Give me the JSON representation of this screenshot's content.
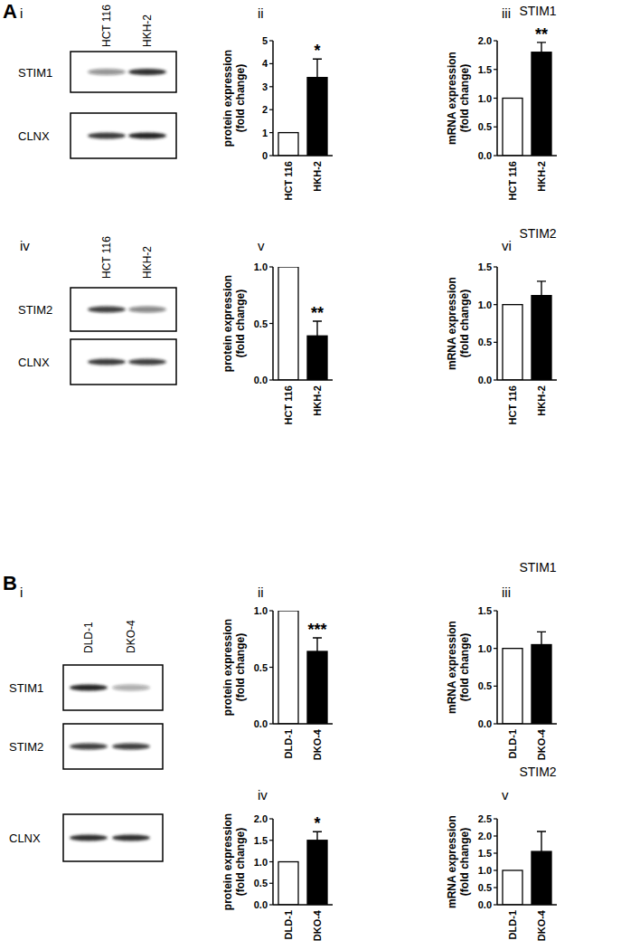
{
  "chart_data": [
    {
      "type": "bar",
      "title": "ii",
      "categories": [
        "HCT 116",
        "HKH-2"
      ],
      "values": [
        1,
        3.4
      ],
      "errors": [
        null,
        0.8
      ],
      "colors": [
        "#ffffff",
        "#000000"
      ],
      "y_label": [
        "protein expression",
        "(fold change)"
      ],
      "ylim": [
        0,
        5
      ],
      "yticks": [
        0,
        1,
        2,
        3,
        4,
        5
      ],
      "annotation": "*"
    },
    {
      "type": "bar",
      "title": "iii",
      "categories": [
        "HCT 116",
        "HKH-2"
      ],
      "values": [
        1,
        1.8
      ],
      "errors": [
        null,
        0.17
      ],
      "colors": [
        "#ffffff",
        "#000000"
      ],
      "y_label": [
        "mRNA expression",
        "(fold change)"
      ],
      "ylim": [
        0,
        2
      ],
      "yticks": [
        {
          "value": 0,
          "label": "0.0"
        },
        {
          "value": 0.5,
          "label": "0.5"
        },
        {
          "value": 1,
          "label": "1.0"
        },
        {
          "value": 1.5,
          "label": "1.5"
        },
        {
          "value": 2,
          "label": "2.0"
        }
      ],
      "annotation": "**"
    },
    {
      "type": "bar",
      "title": "v",
      "categories": [
        "HCT 116",
        "HKH-2"
      ],
      "values": [
        1,
        0.39
      ],
      "errors": [
        null,
        0.13
      ],
      "colors": [
        "#ffffff",
        "#000000"
      ],
      "y_label": [
        "protein expression",
        "(fold change)"
      ],
      "ylim": [
        0,
        1
      ],
      "yticks": [
        {
          "value": 0,
          "label": "0.0"
        },
        {
          "value": 0.5,
          "label": "0.5"
        },
        {
          "value": 1,
          "label": "1.0"
        }
      ],
      "annotation": "**"
    },
    {
      "type": "bar",
      "title": "vi",
      "categories": [
        "HCT 116",
        "HKH-2"
      ],
      "values": [
        1,
        1.12
      ],
      "errors": [
        null,
        0.19
      ],
      "colors": [
        "#ffffff",
        "#000000"
      ],
      "y_label": [
        "mRNA expression",
        "(fold change)"
      ],
      "ylim": [
        0,
        1.5
      ],
      "yticks": [
        {
          "value": 0,
          "label": "0.0"
        },
        {
          "value": 0.5,
          "label": "0.5"
        },
        {
          "value": 1,
          "label": "1.0"
        },
        {
          "value": 1.5,
          "label": "1.5"
        }
      ]
    },
    {
      "type": "bar",
      "title": "ii",
      "categories": [
        "DLD-1",
        "DKO-4"
      ],
      "values": [
        1,
        0.64
      ],
      "errors": [
        null,
        0.12
      ],
      "colors": [
        "#ffffff",
        "#000000"
      ],
      "y_label": [
        "protein expression",
        "(fold change)"
      ],
      "ylim": [
        0,
        1
      ],
      "yticks": [
        {
          "value": 0,
          "label": "0.0"
        },
        {
          "value": 0.5,
          "label": "0.5"
        },
        {
          "value": 1,
          "label": "1.0"
        }
      ],
      "annotation": "***"
    },
    {
      "type": "bar",
      "title": "iii",
      "categories": [
        "DLD-1",
        "DKO-4"
      ],
      "values": [
        1,
        1.05
      ],
      "errors": [
        null,
        0.17
      ],
      "colors": [
        "#ffffff",
        "#000000"
      ],
      "y_label": [
        "mRNA expression",
        "(fold change)"
      ],
      "ylim": [
        0,
        1.5
      ],
      "yticks": [
        {
          "value": 0,
          "label": "0.0"
        },
        {
          "value": 0.5,
          "label": "0.5"
        },
        {
          "value": 1,
          "label": "1.0"
        },
        {
          "value": 1.5,
          "label": "1.5"
        }
      ]
    },
    {
      "type": "bar",
      "title": "iv",
      "categories": [
        "DLD-1",
        "DKO-4"
      ],
      "values": [
        1,
        1.5
      ],
      "errors": [
        null,
        0.2
      ],
      "colors": [
        "#ffffff",
        "#000000"
      ],
      "y_label": [
        "protein expression",
        "(fold change)"
      ],
      "ylim": [
        0,
        2
      ],
      "yticks": [
        {
          "value": 0,
          "label": "0.0"
        },
        {
          "value": 0.5,
          "label": "0.5"
        },
        {
          "value": 1,
          "label": "1.0"
        },
        {
          "value": 1.5,
          "label": "1.5"
        },
        {
          "value": 2,
          "label": "2.0"
        }
      ],
      "annotation": "*"
    },
    {
      "type": "bar",
      "title": "v",
      "categories": [
        "DLD-1",
        "DKO-4"
      ],
      "values": [
        1,
        1.55
      ],
      "errors": [
        null,
        0.58
      ],
      "colors": [
        "#ffffff",
        "#000000"
      ],
      "y_label": [
        "mRNA expression",
        "(fold change)"
      ],
      "ylim": [
        0,
        2.5
      ],
      "yticks": [
        {
          "value": 0,
          "label": "0.0"
        },
        {
          "value": 0.5,
          "label": "0.5"
        },
        {
          "value": 1,
          "label": "1.0"
        },
        {
          "value": 1.5,
          "label": "1.5"
        },
        {
          "value": 2,
          "label": "2.0"
        },
        {
          "value": 2.5,
          "label": "2.5"
        }
      ]
    }
  ],
  "figure": {
    "panels": [
      {
        "label": "A",
        "headers": [
          "STIM1",
          "STIM2"
        ],
        "blots": [
          {
            "label": "i",
            "lanes": [
              "HCT 116",
              "HKH-2"
            ],
            "rows": [
              "STIM1",
              "CLNX"
            ]
          },
          {
            "label": "iv",
            "lanes": [
              "HCT 116",
              "HKH-2"
            ],
            "rows": [
              "STIM2",
              "CLNX"
            ]
          }
        ]
      },
      {
        "label": "B",
        "headers": [
          "STIM1",
          "STIM2"
        ],
        "blots": [
          {
            "label": "i",
            "lanes": [
              "DLD-1",
              "DKO-4"
            ],
            "rows": [
              "STIM1",
              "STIM2",
              "CLNX"
            ]
          }
        ]
      }
    ]
  }
}
